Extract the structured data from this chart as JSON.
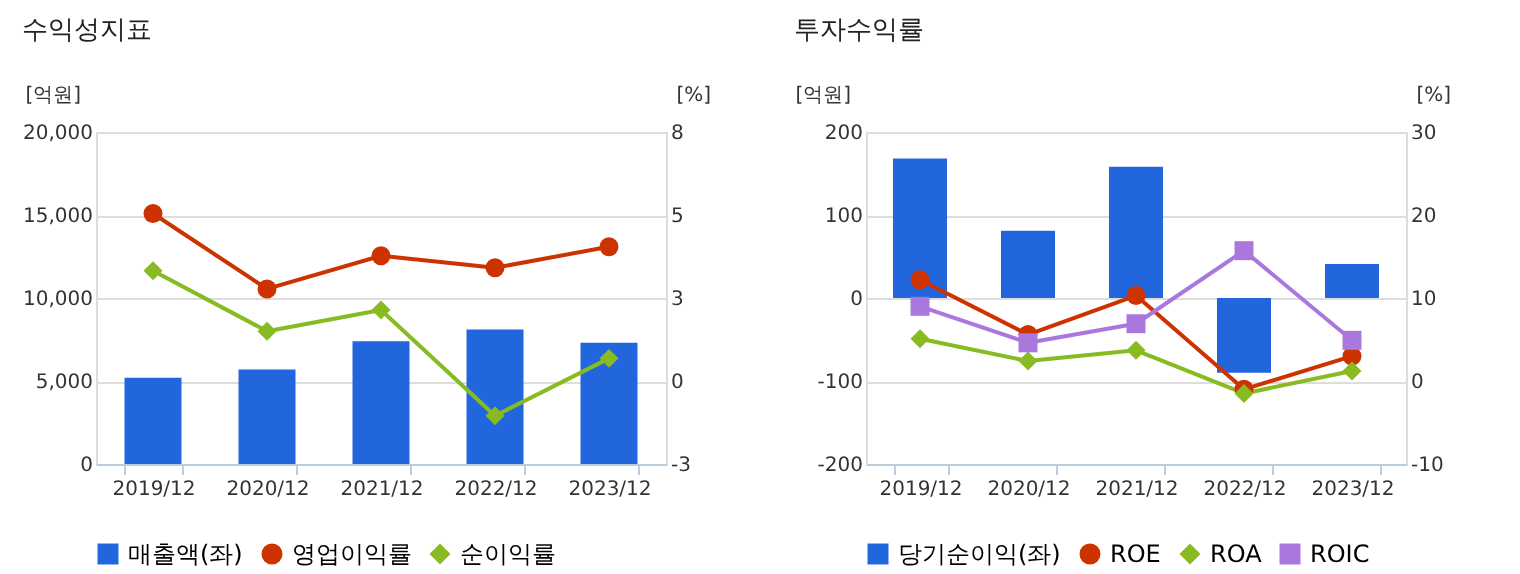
{
  "chart_data": [
    {
      "type": "bar",
      "title": "수익성지표",
      "ylabel": "[억원]",
      "y2label": "[%]",
      "categories": [
        "2019/12",
        "2020/12",
        "2021/12",
        "2022/12",
        "2023/12"
      ],
      "series": [
        {
          "name": "매출액(좌)",
          "color": "#2266dd",
          "values": [
            5200,
            5700,
            7400,
            8100,
            7300
          ]
        },
        {
          "name": "영업이익률",
          "type": "line",
          "axis": "y2",
          "marker": "circle",
          "color": "#cc3300",
          "values": [
            5.3,
            2.8,
            3.9,
            3.5,
            4.2
          ]
        },
        {
          "name": "순이익률",
          "type": "line",
          "axis": "y2",
          "marker": "diamond",
          "color": "#88bb22",
          "values": [
            3.4,
            1.4,
            2.1,
            -1.4,
            0.5
          ]
        }
      ],
      "ylim": [
        0,
        20000
      ],
      "yticks": [
        0,
        {
          "value": 5000,
          "label": "5,000"
        },
        {
          "value": 10000,
          "label": "10,000"
        },
        {
          "value": 15000,
          "label": "15,000"
        },
        {
          "value": 20000,
          "label": "20,000"
        }
      ],
      "y2lim": [
        -3,
        8
      ],
      "y2ticks": [
        -3,
        {
          "value": -0.25,
          "label": "0"
        },
        {
          "value": 2.5,
          "label": "3"
        },
        {
          "value": 5.25,
          "label": "5"
        },
        8
      ],
      "grid": "y",
      "legend": "bottom"
    },
    {
      "type": "bar",
      "title": "투자수익률",
      "ylabel": "[억원]",
      "y2label": "[%]",
      "categories": [
        "2019/12",
        "2020/12",
        "2021/12",
        "2022/12",
        "2023/12"
      ],
      "series": [
        {
          "name": "당기순이익(좌)",
          "color": "#2266dd",
          "values": [
            168,
            81,
            158,
            -90,
            41
          ]
        },
        {
          "name": "ROE",
          "type": "line",
          "axis": "y2",
          "marker": "circle",
          "color": "#cc3300",
          "values": [
            12.2,
            5.6,
            10.3,
            -1.0,
            3.0
          ]
        },
        {
          "name": "ROA",
          "type": "line",
          "axis": "y2",
          "marker": "diamond",
          "color": "#88bb22",
          "values": [
            5.1,
            2.4,
            3.7,
            -1.5,
            1.2
          ]
        },
        {
          "name": "ROIC",
          "type": "line",
          "axis": "y2",
          "marker": "square",
          "color": "#aa77dd",
          "values": [
            9.0,
            4.6,
            6.9,
            15.7,
            4.9
          ]
        }
      ],
      "ylim": [
        -200,
        200
      ],
      "yticks": [
        -200,
        -100,
        0,
        100,
        200
      ],
      "y2lim": [
        -10,
        30
      ],
      "y2ticks": [
        -10,
        0,
        10,
        20,
        30
      ],
      "grid": "y",
      "legend": "bottom"
    }
  ]
}
